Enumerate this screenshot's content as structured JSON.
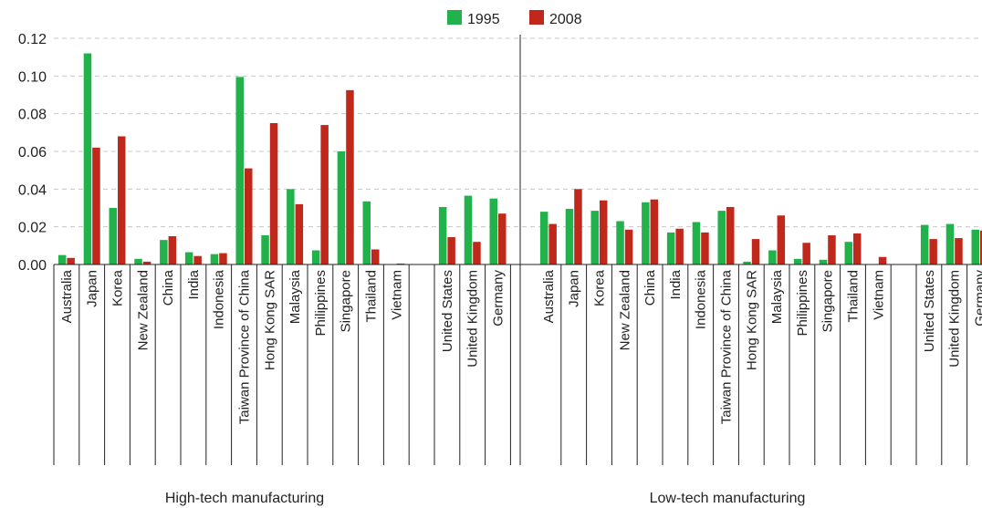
{
  "chart_data": {
    "type": "bar",
    "ylim": [
      0,
      0.12
    ],
    "yticks": [
      "0.00",
      "0.02",
      "0.04",
      "0.06",
      "0.08",
      "0.10",
      "0.12"
    ],
    "grid": "horizontal dashed",
    "legend_position": "top-center",
    "series": [
      {
        "name": "1995",
        "color": "#22b24c"
      },
      {
        "name": "2008",
        "color": "#c0281c"
      }
    ],
    "groups": [
      {
        "label": "High-tech manufacturing",
        "categories": [
          "Australia",
          "Japan",
          "Korea",
          "New Zealand",
          "China",
          "India",
          "Indonesia",
          "Taiwan Province of China",
          "Hong Kong SAR",
          "Malaysia",
          "Philippines",
          "Singapore",
          "Thailand",
          "Vietnam",
          "",
          "United States",
          "United Kingdom",
          "Germany"
        ],
        "values_1995": [
          0.005,
          0.112,
          0.03,
          0.003,
          0.013,
          0.0065,
          0.0055,
          0.0995,
          0.0155,
          0.04,
          0.0075,
          0.06,
          0.0335,
          0.0,
          null,
          0.0305,
          0.0365,
          0.035
        ],
        "values_2008": [
          0.0035,
          0.062,
          0.068,
          0.0015,
          0.015,
          0.0045,
          0.006,
          0.051,
          0.075,
          0.032,
          0.074,
          0.0925,
          0.008,
          0.0005,
          null,
          0.0145,
          0.012,
          0.027
        ]
      },
      {
        "label": "Low-tech manufacturing",
        "categories": [
          "Australia",
          "Japan",
          "Korea",
          "New Zealand",
          "China",
          "India",
          "Indonesia",
          "Taiwan Province of China",
          "Hong Kong SAR",
          "Malaysia",
          "Philippines",
          "Singapore",
          "Thailand",
          "Vietnam",
          "",
          "United States",
          "United Kingdom",
          "Germany"
        ],
        "values_1995": [
          0.028,
          0.0295,
          0.0285,
          0.023,
          0.033,
          0.017,
          0.0225,
          0.0285,
          0.0015,
          0.0075,
          0.003,
          0.0025,
          0.012,
          0.0,
          null,
          0.021,
          0.0215,
          0.0185
        ],
        "values_2008": [
          0.0215,
          0.04,
          0.034,
          0.0185,
          0.0345,
          0.019,
          0.017,
          0.0305,
          0.0135,
          0.026,
          0.0115,
          0.0155,
          0.0165,
          0.004,
          null,
          0.0135,
          0.014,
          0.018
        ]
      }
    ]
  }
}
